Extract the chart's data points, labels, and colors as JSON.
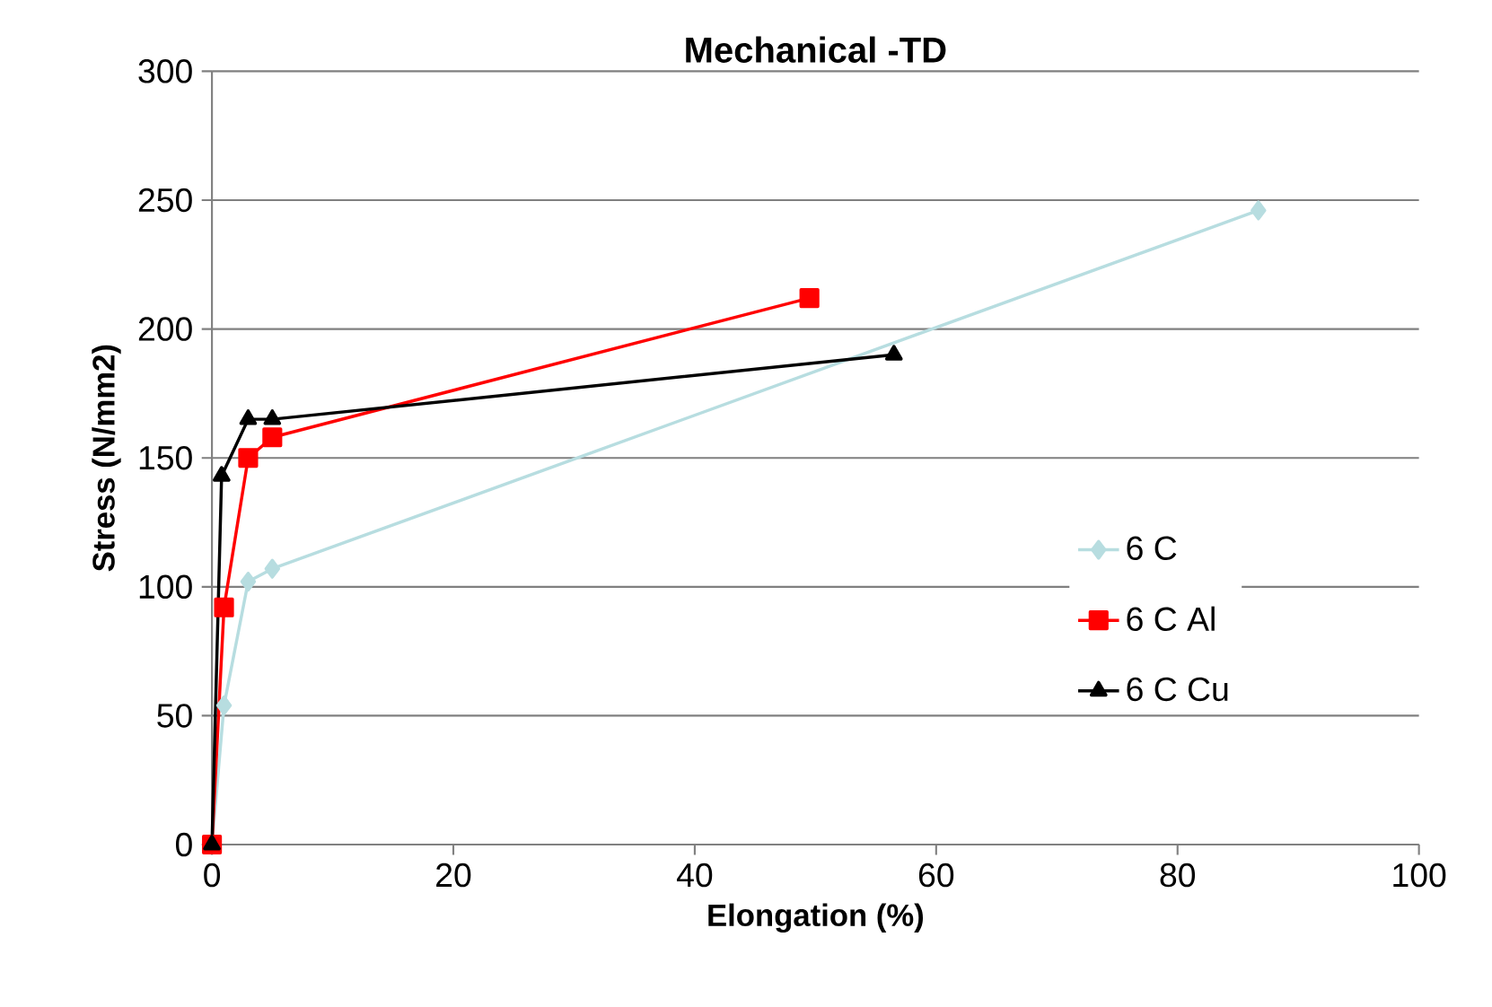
{
  "chart_data": {
    "type": "line",
    "title": "Mechanical -TD",
    "xlabel": "Elongation (%)",
    "ylabel": "Stress (N/mm2)",
    "xlim": [
      0,
      100
    ],
    "ylim": [
      0,
      300
    ],
    "xticks": [
      0,
      20,
      40,
      60,
      80,
      100
    ],
    "yticks": [
      0,
      50,
      100,
      150,
      200,
      250,
      300
    ],
    "grid": "y",
    "legend": "right",
    "series": [
      {
        "name": "6 C",
        "color": "#b7dde0",
        "marker": "diamond",
        "x": [
          0,
          1,
          3,
          5,
          86.7
        ],
        "values": [
          0,
          54,
          102,
          107,
          246
        ]
      },
      {
        "name": "6 C Al",
        "color": "#ff0000",
        "marker": "square",
        "x": [
          0,
          1,
          3,
          5,
          49.5
        ],
        "values": [
          0,
          92,
          150,
          158,
          212
        ]
      },
      {
        "name": "6 C Cu",
        "color": "#000000",
        "marker": "triangle",
        "x": [
          0,
          0.8,
          3,
          5,
          56.5
        ],
        "values": [
          0,
          143,
          165,
          165,
          190
        ]
      }
    ]
  }
}
